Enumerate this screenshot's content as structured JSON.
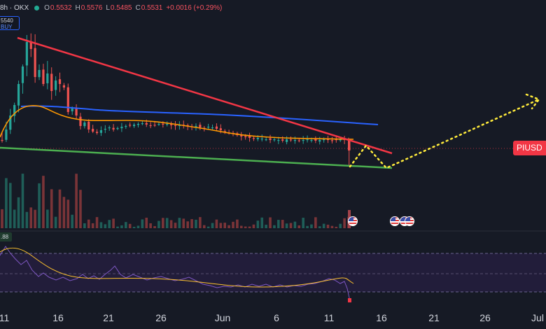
{
  "legend": {
    "symbol": "8h · OKX",
    "open_key": "O",
    "open": "0.5532",
    "high_key": "H",
    "high": "0.5576",
    "low_key": "L",
    "low": "0.5485",
    "close_key": "C",
    "close": "0.5531",
    "change": "+0.0016 (+0.29%)",
    "colors": {
      "down": "#f7525f",
      "up": "#22ab94"
    }
  },
  "price_box": {
    "price": "5540",
    "side": "BUY"
  },
  "rsi_badge": {
    "value": ".88"
  },
  "ticker_label": {
    "text": "PIUSD"
  },
  "date_axis": [
    "11",
    "16",
    "21",
    "26",
    "Jun",
    "6",
    "11",
    "16",
    "21",
    "26",
    "Jul"
  ],
  "colors": {
    "background": "#161a25",
    "candle_up": "#26a69a",
    "candle_down": "#ef5350",
    "resistance_line": "#f23645",
    "support_line": "#4caf50",
    "ma_blue": "#2962ff",
    "ma_orange": "#ff9800",
    "projection": "#ffeb3b",
    "rsi_line": "#7e57c2",
    "rsi_ma": "#fbc02d",
    "rsi_band": "#2a2447"
  },
  "icons": {
    "event_marker": "us-flag-icon"
  },
  "chart_data": {
    "type": "candlestick",
    "pair": "PIUSD",
    "interval": "8h",
    "exchange": "OKX",
    "last": {
      "open": 0.5532,
      "high": 0.5576,
      "low": 0.5485,
      "close": 0.5531,
      "change": 0.0016,
      "change_pct": 0.29
    },
    "x_ticks": [
      "11",
      "16",
      "21",
      "26",
      "Jun",
      "6",
      "11",
      "16",
      "21",
      "26",
      "Jul"
    ],
    "indicators": [
      "volume",
      "moving averages",
      "RSI"
    ],
    "drawings": [
      "descending resistance trendline",
      "support trendline",
      "projected path"
    ],
    "grid": false
  }
}
